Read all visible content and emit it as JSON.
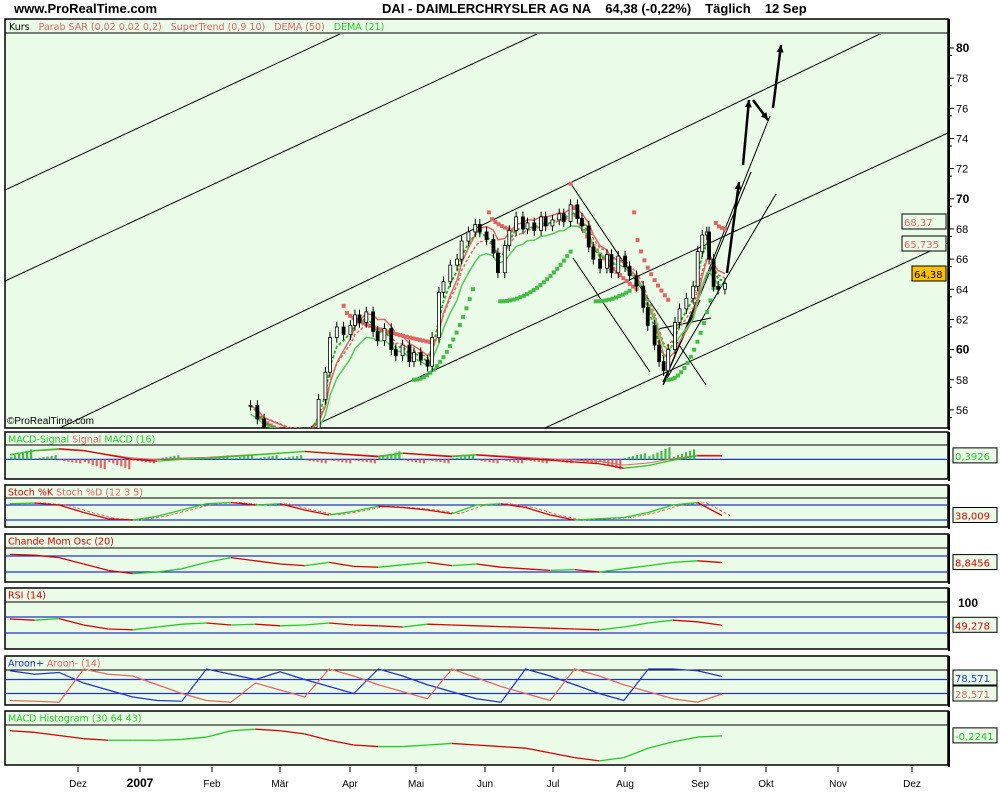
{
  "header": {
    "site": "www.ProRealTime.com",
    "title": "DAI - DAIMLERCHRYSLER AG NA",
    "quote": "64,38 (-0,22%)",
    "period": "Täglich",
    "date": "12 Sep",
    "copyright": "©ProRealTime.com"
  },
  "legend": [
    {
      "label": "Kurs",
      "color": "#000000"
    },
    {
      "label": "Parab SAR (0,02 0,02 0,2)",
      "color": "#e06666"
    },
    {
      "label": "SuperTrend (0,9 10)",
      "color": "#e06666"
    },
    {
      "label": "DEMA (50)",
      "color": "#e06666"
    },
    {
      "label": "DEMA (21)",
      "color": "#22cc22"
    }
  ],
  "colors": {
    "background": "#eafbe8",
    "up": "#22cc22",
    "down": "#dd0000",
    "level": "#2233cc",
    "last_price_box": "#ffc000"
  },
  "chart_data": [
    {
      "type": "candlestick",
      "name": "Kurs",
      "ylim": [
        55,
        81
      ],
      "yticks": [
        56,
        58,
        60,
        62,
        64,
        66,
        68,
        70,
        72,
        74,
        76,
        78,
        80
      ],
      "ytick_labels": [
        "56",
        "58",
        "60",
        "62",
        "64",
        "66",
        "68",
        "70",
        "72",
        "74",
        "76",
        "78",
        "80"
      ],
      "xlim": [
        "2006-11-06",
        "2007-12-31"
      ],
      "xticks": [
        {
          "date": "2006-12-01",
          "label": "Dez"
        },
        {
          "date": "2006-12-29",
          "label": "2007"
        },
        {
          "date": "2007-01-29",
          "label": "Feb"
        },
        {
          "date": "2007-02-28",
          "label": "Mär"
        },
        {
          "date": "2007-03-30",
          "label": "Apr"
        },
        {
          "date": "2007-04-28",
          "label": "Mai"
        },
        {
          "date": "2007-05-29",
          "label": "Jun"
        },
        {
          "date": "2007-06-28",
          "label": "Jul"
        },
        {
          "date": "2007-07-30",
          "label": "Aug"
        },
        {
          "date": "2007-08-31",
          "label": "Sep"
        },
        {
          "date": "2007-09-29",
          "label": "Okt"
        },
        {
          "date": "2007-10-30",
          "label": "Nov"
        },
        {
          "date": "2007-12-01",
          "label": "Dez"
        }
      ],
      "dates": [
        "2007-02-15",
        "2007-02-18",
        "2007-02-21",
        "2007-03-04",
        "2007-03-13",
        "2007-03-17",
        "2007-03-20",
        "2007-03-22",
        "2007-03-25",
        "2007-03-28",
        "2007-03-31",
        "2007-04-02",
        "2007-04-04",
        "2007-04-07",
        "2007-04-10",
        "2007-04-12",
        "2007-04-15",
        "2007-04-18",
        "2007-04-20",
        "2007-04-23",
        "2007-04-26",
        "2007-04-28",
        "2007-05-01",
        "2007-05-04",
        "2007-05-06",
        "2007-05-09",
        "2007-05-11",
        "2007-05-14",
        "2007-05-17",
        "2007-05-19",
        "2007-05-22",
        "2007-05-25",
        "2007-05-27",
        "2007-05-30",
        "2007-06-02",
        "2007-06-04",
        "2007-06-07",
        "2007-06-09",
        "2007-06-12",
        "2007-06-15",
        "2007-06-17",
        "2007-06-20",
        "2007-06-23",
        "2007-06-25",
        "2007-06-28",
        "2007-07-01",
        "2007-07-03",
        "2007-07-06",
        "2007-07-09",
        "2007-07-11",
        "2007-07-14",
        "2007-07-16",
        "2007-07-19",
        "2007-07-22",
        "2007-07-24",
        "2007-07-27",
        "2007-07-30",
        "2007-08-01",
        "2007-08-04",
        "2007-08-07",
        "2007-08-09",
        "2007-08-12",
        "2007-08-14",
        "2007-08-16",
        "2007-08-18",
        "2007-08-21",
        "2007-08-23",
        "2007-08-26",
        "2007-08-29",
        "2007-08-31",
        "2007-09-02",
        "2007-09-04",
        "2007-09-05",
        "2007-09-07",
        "2007-09-09",
        "2007-09-12"
      ],
      "close": [
        56.3,
        55.4,
        54.5,
        53.5,
        54.5,
        56.7,
        58.5,
        60.8,
        61.5,
        61.0,
        61.6,
        62.3,
        61.8,
        62.5,
        61.2,
        60.6,
        61.4,
        60.0,
        59.6,
        60.3,
        59.2,
        59.8,
        59.3,
        58.9,
        60.8,
        63.8,
        64.5,
        65.6,
        66.0,
        67.2,
        67.8,
        68.3,
        67.8,
        67.3,
        66.4,
        65.1,
        66.9,
        67.9,
        68.8,
        68.0,
        68.4,
        67.9,
        68.8,
        68.2,
        68.6,
        69.0,
        68.5,
        69.6,
        68.7,
        68.2,
        66.8,
        66.0,
        65.4,
        66.3,
        65.1,
        66.2,
        65.5,
        64.9,
        64.2,
        62.8,
        61.6,
        60.3,
        59.2,
        58.6,
        60.0,
        61.8,
        62.7,
        63.4,
        64.2,
        66.5,
        67.6,
        67.8,
        66.0,
        64.2,
        64.0,
        64.38
      ],
      "parabolic_sar": [
        {
          "from": "2007-02-18",
          "to": "2007-03-12",
          "start": 56.0,
          "end": 54.0,
          "color": "#e06666"
        },
        {
          "from": "2007-03-28",
          "to": "2007-05-05",
          "start": 62.9,
          "end": 60.5,
          "color": "#e06666"
        },
        {
          "from": "2007-04-28",
          "to": "2007-05-24",
          "start": 58.0,
          "end": 64.0,
          "color": "#44bb44"
        },
        {
          "from": "2007-05-31",
          "to": "2007-06-10",
          "start": 69.1,
          "end": 67.9,
          "color": "#e06666"
        },
        {
          "from": "2007-06-05",
          "to": "2007-07-06",
          "start": 63.2,
          "end": 66.5,
          "color": "#44bb44"
        },
        {
          "from": "2007-07-06",
          "to": "2007-08-04",
          "start": 71.0,
          "end": 64.0,
          "color": "#e06666"
        },
        {
          "from": "2007-07-17",
          "to": "2007-08-01",
          "start": 63.2,
          "end": 63.9,
          "color": "#44bb44"
        },
        {
          "from": "2007-08-03",
          "to": "2007-08-18",
          "start": 69.1,
          "end": 63.3,
          "color": "#e06666"
        },
        {
          "from": "2007-08-18",
          "to": "2007-09-07",
          "start": 58.0,
          "end": 64.1,
          "color": "#44bb44"
        },
        {
          "from": "2007-09-08",
          "to": "2007-09-12",
          "start": 68.4,
          "end": 68.0,
          "color": "#e06666"
        }
      ],
      "last_values": [
        {
          "label": "68,37",
          "color": "#e06666"
        },
        {
          "label": "65,735",
          "color": "#e06666"
        },
        {
          "label": "64,38",
          "color": "#000000"
        }
      ]
    },
    {
      "type": "line",
      "name": "MACD-Signal",
      "title_parts": [
        {
          "t": "MACD-Signal ",
          "c": "#22cc22"
        },
        {
          "t": "Signal ",
          "c": "#e06666"
        },
        {
          "t": "MACD (16)",
          "c": "#22cc22"
        }
      ],
      "ylim": [
        -2.0,
        1.4
      ],
      "levels": [
        0
      ],
      "values": [
        0.5,
        1.0,
        1.2,
        1.0,
        0.5,
        0,
        -0.2,
        0,
        0.1,
        0.3,
        0.5,
        0.7,
        0.9,
        0.7,
        0.5,
        0.3,
        0.7,
        0.5,
        0.3,
        0.5,
        0.3,
        0.1,
        -0.1,
        -0.3,
        -0.5,
        -1.0,
        -0.7,
        -0.1,
        0.4,
        0.3926
      ],
      "last": "0,3926",
      "last_color": "#22cc22"
    },
    {
      "type": "line",
      "name": "Stoch",
      "title_parts": [
        {
          "t": "Stoch %K ",
          "c": "#dd0000"
        },
        {
          "t": "Stoch %D (12 3 5)",
          "c": "#e06666"
        }
      ],
      "ylim": [
        0,
        100
      ],
      "levels": [
        80,
        20
      ],
      "values": [
        85,
        88,
        80,
        50,
        25,
        20,
        35,
        60,
        85,
        90,
        80,
        85,
        60,
        40,
        55,
        75,
        70,
        60,
        45,
        80,
        85,
        70,
        40,
        20,
        25,
        30,
        50,
        80,
        90,
        38.009
      ],
      "last": "38,009",
      "last_color": "#dd0000"
    },
    {
      "type": "line",
      "name": "Chande",
      "title_parts": [
        {
          "t": "Chande Mom Osc (20)",
          "c": "#dd0000"
        }
      ],
      "ylim": [
        -100,
        100
      ],
      "levels": [
        50,
        -50
      ],
      "values": [
        60,
        55,
        40,
        0,
        -40,
        -60,
        -50,
        -30,
        10,
        40,
        20,
        0,
        -10,
        10,
        -15,
        -20,
        -5,
        10,
        -10,
        0,
        -20,
        -30,
        -40,
        -35,
        -50,
        -30,
        -10,
        10,
        20,
        8.8456
      ],
      "last": "8,8456",
      "last_color": "#dd0000"
    },
    {
      "type": "line",
      "name": "RSI",
      "title_parts": [
        {
          "t": "RSI (14)",
          "c": "#dd0000"
        }
      ],
      "ylim": [
        0,
        100
      ],
      "levels": [
        70,
        30
      ],
      "values": [
        65,
        62,
        66,
        50,
        40,
        38,
        45,
        52,
        55,
        50,
        52,
        48,
        50,
        55,
        50,
        48,
        45,
        52,
        50,
        48,
        46,
        44,
        42,
        40,
        38,
        45,
        55,
        62,
        58,
        49.278
      ],
      "last": "49,278",
      "last_color": "#dd0000",
      "axis_label": "100"
    },
    {
      "type": "line",
      "name": "Aroon",
      "title_parts": [
        {
          "t": "Aroon+ ",
          "c": "#2233cc"
        },
        {
          "t": "Aroon- (14)",
          "c": "#e06666"
        }
      ],
      "ylim": [
        0,
        100
      ],
      "levels": [
        70,
        30
      ],
      "series": [
        {
          "name": "Aroon+",
          "color": "#2233cc",
          "values": [
            95,
            85,
            90,
            60,
            40,
            20,
            10,
            8,
            100,
            85,
            70,
            92,
            70,
            50,
            30,
            100,
            80,
            55,
            35,
            15,
            5,
            100,
            80,
            55,
            30,
            10,
            100,
            100,
            95,
            78.571
          ]
        },
        {
          "name": "Aroon-",
          "color": "#e06666",
          "values": [
            10,
            8,
            5,
            100,
            85,
            80,
            55,
            30,
            10,
            5,
            60,
            40,
            20,
            100,
            80,
            55,
            35,
            15,
            100,
            75,
            50,
            30,
            10,
            100,
            80,
            55,
            35,
            15,
            5,
            28.571
          ]
        }
      ],
      "last": [
        "78,571",
        "28,571"
      ]
    },
    {
      "type": "line",
      "name": "MACD Histogram",
      "title_parts": [
        {
          "t": "MACD Histogram (30 64 43)",
          "c": "#22cc22"
        }
      ],
      "ylim": [
        -2.0,
        0.4
      ],
      "levels": [],
      "values": [
        0.1,
        0.0,
        -0.2,
        -0.4,
        -0.5,
        -0.5,
        -0.5,
        -0.45,
        -0.3,
        0.1,
        0.2,
        0.1,
        -0.1,
        -0.5,
        -0.8,
        -0.9,
        -0.9,
        -0.8,
        -0.7,
        -0.8,
        -0.9,
        -1.0,
        -1.3,
        -1.6,
        -1.8,
        -1.6,
        -1.0,
        -0.6,
        -0.3,
        -0.2241
      ],
      "last": "-0,2241",
      "last_color": "#22cc22"
    }
  ]
}
